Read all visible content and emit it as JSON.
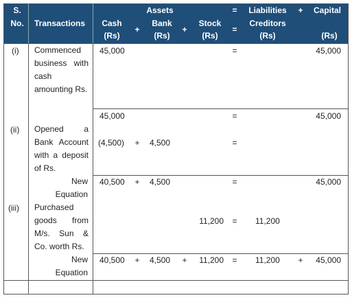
{
  "header": {
    "sno": "S. No.",
    "transactions": "Transactions",
    "assets": "Assets",
    "eq1": "=",
    "liabilities": "Liabilities",
    "plus1": "+",
    "capital": "Capital",
    "cash": "Cash",
    "cash_unit": "(Rs)",
    "plus2": "+",
    "bank": "Bank",
    "bank_unit": "(Rs)",
    "plus3": "+",
    "stock": "Stock",
    "stock_unit": "(Rs)",
    "eq2": "=",
    "creditors": "Creditors",
    "creditors_unit": "(Rs)",
    "capital_unit": "(Rs)"
  },
  "rows": [
    {
      "sno": "(i)",
      "transaction": "Commenced business with cash amounting Rs.",
      "lines": [
        {
          "cash": "45,000",
          "eq": "=",
          "capital": "45,000"
        }
      ]
    },
    {
      "sno": "(ii)",
      "transaction": "Opened a Bank Account with a deposit of Rs.",
      "lines": [
        {
          "cash": "45,000",
          "eq": "=",
          "capital": "45,000"
        },
        {
          "cash": "(4,500)",
          "plus1": "+",
          "bank": "4,500",
          "eq": "="
        }
      ]
    },
    {
      "label": "New Equation",
      "lines": [
        {
          "cash": "40,500",
          "plus1": "+",
          "bank": "4,500",
          "eq": "=",
          "capital": "45,000"
        }
      ]
    },
    {
      "sno": "(iii)",
      "transaction": "Purchased goods from M/s. Sun & Co. worth Rs.",
      "lines": [
        {
          "stock": "11,200",
          "eq": "=",
          "creditors": "11,200"
        }
      ]
    },
    {
      "label": "New Equation",
      "lines": [
        {
          "cash": "40,500",
          "plus1": "+",
          "bank": "4,500",
          "plus2": "+",
          "stock": "11,200",
          "eq": "=",
          "creditors": "11,200",
          "plus3": "+",
          "capital": "45,000"
        }
      ]
    }
  ]
}
